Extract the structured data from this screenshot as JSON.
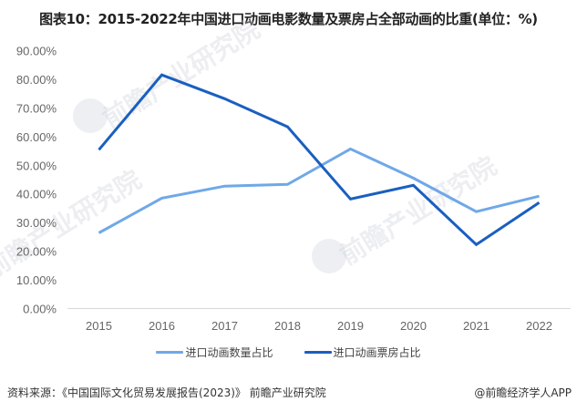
{
  "title": "图表10：2015-2022年中国进口动画电影数量及票房占全部动画的比重(单位：%)",
  "chart_data": {
    "type": "line",
    "title": "图表10：2015-2022年中国进口动画电影数量及票房占全部动画的比重(单位：%)",
    "xlabel": "",
    "ylabel": "",
    "categories": [
      "2015",
      "2016",
      "2017",
      "2018",
      "2019",
      "2020",
      "2021",
      "2022"
    ],
    "series": [
      {
        "name": "进口动画数量占比",
        "color": "#6fa8e8",
        "values": [
          26.4,
          38.5,
          42.7,
          43.3,
          55.7,
          45.5,
          33.8,
          39.2
        ]
      },
      {
        "name": "进口动画票房占比",
        "color": "#1a5fc0",
        "values": [
          55.4,
          81.5,
          73.2,
          63.4,
          38.2,
          43.0,
          22.3,
          37.0
        ]
      }
    ],
    "ylim": [
      0,
      90
    ],
    "yticks": [
      "0.00%",
      "10.00%",
      "20.00%",
      "30.00%",
      "40.00%",
      "50.00%",
      "60.00%",
      "70.00%",
      "80.00%",
      "90.00%"
    ],
    "grid": false,
    "legend_position": "bottom"
  },
  "legend": [
    {
      "label": "进口动画数量占比",
      "color": "#6fa8e8"
    },
    {
      "label": "进口动画票房占比",
      "color": "#1a5fc0"
    }
  ],
  "footer": {
    "source": "资料来源：《中国国际文化贸易发展报告(2023)》 前瞻产业研究院",
    "credit": "@前瞻经济学人APP"
  },
  "watermark": {
    "text": "前瞻产业研究院"
  }
}
